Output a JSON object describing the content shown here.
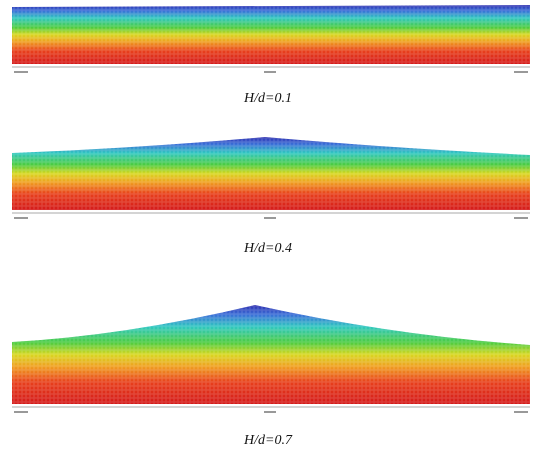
{
  "panels": [
    {
      "caption": "H/d=0.1"
    },
    {
      "caption": "H/d=0.4"
    },
    {
      "caption": "H/d=0.7"
    }
  ]
}
